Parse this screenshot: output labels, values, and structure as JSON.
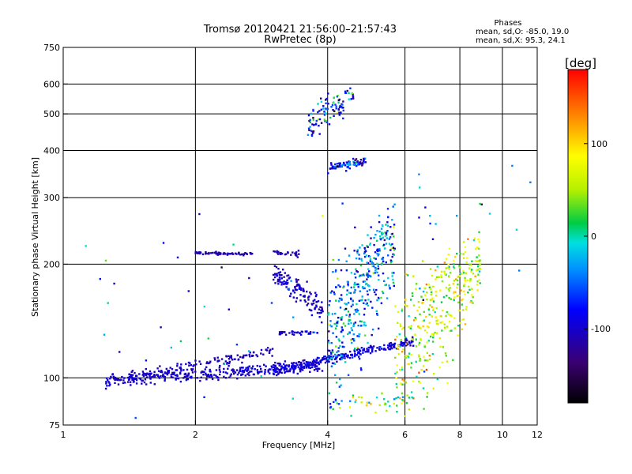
{
  "chart_data": {
    "type": "scatter",
    "title": "Tromsø 20120421 21:56:00–21:57:43",
    "subtitle": "RwPretec (8p)",
    "xlabel": "Frequency [MHz]",
    "ylabel": "Stationary phase Virtual Height [km]",
    "x_scale": "log",
    "y_scale": "log",
    "xlim": [
      1,
      12
    ],
    "ylim": [
      75,
      750
    ],
    "x_ticks": [
      1,
      2,
      4,
      6,
      8,
      10,
      12
    ],
    "x_tick_labels": [
      "1",
      "2",
      "4",
      "6",
      "8",
      "10",
      "12"
    ],
    "x_grid": [
      2,
      4,
      6,
      8,
      10
    ],
    "y_ticks": [
      75,
      100,
      200,
      300,
      400,
      500,
      600,
      750
    ],
    "y_tick_labels": [
      "75",
      "100",
      "200",
      "300",
      "400",
      "500",
      "600",
      "750"
    ],
    "y_grid": [
      100,
      200,
      300,
      400,
      500,
      600
    ],
    "grid": true,
    "phase_stats": {
      "title": "Phases",
      "line_o": "mean, sd,O: -85.0, 19.0",
      "line_x": "mean, sd,X:  95.3, 24.1"
    },
    "colorbar": {
      "label": "[deg]",
      "range": [
        -180,
        180
      ],
      "ticks": [
        100,
        0,
        -100
      ],
      "tick_labels": [
        "100",
        "0",
        "-100"
      ]
    },
    "point_groups": [
      {
        "desc": "low E trace",
        "x_range": [
          1.25,
          3.9
        ],
        "y_start": 98,
        "y_end": 108,
        "y_spread": 4,
        "phase": -100,
        "phase_spread": 15,
        "count": 360
      },
      {
        "desc": "second low trace",
        "x_range": [
          1.4,
          3.0
        ],
        "y_start": 100,
        "y_end": 118,
        "y_spread": 3,
        "phase": -105,
        "phase_spread": 12,
        "count": 120
      },
      {
        "desc": "E trace near 4 MHz",
        "x_range": [
          3.0,
          6.3
        ],
        "y_start": 104,
        "y_end": 125,
        "y_spread": 3,
        "phase": -95,
        "phase_spread": 20,
        "count": 260
      },
      {
        "desc": "sporadic layer 215 km",
        "x_range": [
          2.0,
          2.7
        ],
        "y_start": 214,
        "y_end": 213,
        "y_spread": 2,
        "phase": -110,
        "phase_spread": 10,
        "count": 70
      },
      {
        "desc": "trace 213 km",
        "x_range": [
          3.0,
          3.6
        ],
        "y_start": 214,
        "y_end": 212,
        "y_spread": 3,
        "phase": -110,
        "phase_spread": 10,
        "count": 30
      },
      {
        "desc": "F trace 180 km",
        "x_range": [
          3.0,
          3.9
        ],
        "y_start": 190,
        "y_end": 150,
        "y_spread": 12,
        "phase": -100,
        "phase_spread": 20,
        "count": 130
      },
      {
        "desc": "trace 130 km",
        "x_range": [
          3.1,
          3.8
        ],
        "y_start": 131,
        "y_end": 132,
        "y_spread": 2,
        "phase": -100,
        "phase_spread": 15,
        "count": 40
      },
      {
        "desc": "F region cloud",
        "x_range": [
          4.0,
          5.7
        ],
        "y_start": 120,
        "y_end": 230,
        "y_spread": 60,
        "phase": -40,
        "phase_spread": 70,
        "count": 420
      },
      {
        "desc": "X-mode cloud",
        "x_range": [
          5.7,
          8.9
        ],
        "y_start": 110,
        "y_end": 200,
        "y_spread": 50,
        "phase": 60,
        "phase_spread": 60,
        "count": 360
      },
      {
        "desc": "echo cluster 370 km",
        "x_range": [
          4.0,
          4.9
        ],
        "y_start": 360,
        "y_end": 375,
        "y_spread": 10,
        "phase": -80,
        "phase_spread": 70,
        "count": 80
      },
      {
        "desc": "echo cluster 500 km",
        "x_range": [
          3.6,
          4.6
        ],
        "y_start": 475,
        "y_end": 560,
        "y_spread": 45,
        "phase": -60,
        "phase_spread": 80,
        "count": 100
      },
      {
        "desc": "near 85 km",
        "x_range": [
          4.2,
          6.8
        ],
        "y_start": 85,
        "y_end": 87,
        "y_spread": 6,
        "phase": 20,
        "phase_spread": 90,
        "count": 40
      },
      {
        "desc": "scattered points",
        "x_range": [
          1.1,
          11.6
        ],
        "y_start": 80,
        "y_end": 300,
        "y_spread": 120,
        "phase": -60,
        "phase_spread": 90,
        "count": 70
      }
    ]
  }
}
